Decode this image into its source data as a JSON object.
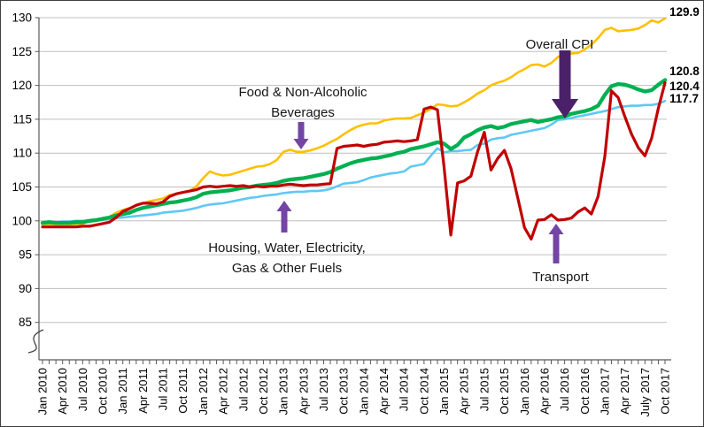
{
  "chart_data": {
    "type": "line",
    "title": "",
    "grid": "horizontal-gray",
    "axis_break": true,
    "ylim_display": [
      85,
      130
    ],
    "y_ticks": [
      85,
      90,
      95,
      100,
      105,
      110,
      115,
      120,
      125,
      130
    ],
    "x_tick_labels": [
      "Jan 2010",
      "Apr 2010",
      "Jul 2010",
      "Oct 2010",
      "Jan 2011",
      "Apr 2011",
      "Jul 2011",
      "Oct 2011",
      "Jan 2012",
      "Apr 2012",
      "Jul 2012",
      "Oct 2012",
      "Jan 2013",
      "Apr 2013",
      "Jul 2013",
      "Oct 2013",
      "Jan 2014",
      "Apr 2014",
      "Jul 2014",
      "Oct 2014",
      "Jan 2015",
      "Apr 2015",
      "Jul 2015",
      "Oct 2015",
      "Jan 2016",
      "Apr 2016",
      "Jul 2016",
      "Oct 2016",
      "Jan 2017",
      "Apr 2017",
      "July 2017",
      "Oct 2017"
    ],
    "months_total": 94,
    "x_range": [
      "Jan 2010",
      "Oct 2017"
    ],
    "series": [
      {
        "id": "food",
        "name": "Food & Non-Alcoholic Beverages",
        "color": "#FFC000",
        "end_label": "129.9",
        "values": [
          99.4,
          99.5,
          99.4,
          99.4,
          99.4,
          99.5,
          99.6,
          99.9,
          100.0,
          100.3,
          100.6,
          101.2,
          101.6,
          101.9,
          102.3,
          102.6,
          102.9,
          103.1,
          103.3,
          103.8,
          104.0,
          104.2,
          104.4,
          105.1,
          106.3,
          107.3,
          106.9,
          106.7,
          106.8,
          107.1,
          107.4,
          107.7,
          108.0,
          108.1,
          108.4,
          109.0,
          110.2,
          110.5,
          110.2,
          110.2,
          110.4,
          110.7,
          111.1,
          111.6,
          112.1,
          112.8,
          113.4,
          113.9,
          114.2,
          114.4,
          114.4,
          114.8,
          115.0,
          115.1,
          115.1,
          115.2,
          115.6,
          116.0,
          116.5,
          117.2,
          117.1,
          116.9,
          117.0,
          117.5,
          118.1,
          118.8,
          119.3,
          120.0,
          120.4,
          120.7,
          121.2,
          121.9,
          122.4,
          123.0,
          123.1,
          122.8,
          123.3,
          124.2,
          124.6,
          124.7,
          124.8,
          125.3,
          126.0,
          127.0,
          128.2,
          128.5,
          128.0,
          128.1,
          128.2,
          128.4,
          128.9,
          129.6,
          129.3,
          129.9
        ]
      },
      {
        "id": "housing",
        "name": "Housing, Water, Electricity, Gas & Other Fuels",
        "color": "#5FC8F4",
        "end_label": "117.7",
        "values": [
          99.7,
          99.8,
          99.8,
          99.9,
          99.9,
          100.0,
          100.0,
          100.1,
          100.1,
          100.2,
          100.3,
          100.4,
          100.5,
          100.6,
          100.7,
          100.8,
          100.9,
          101.0,
          101.2,
          101.3,
          101.4,
          101.5,
          101.7,
          101.9,
          102.2,
          102.4,
          102.5,
          102.6,
          102.8,
          103.0,
          103.2,
          103.4,
          103.5,
          103.7,
          103.8,
          103.9,
          104.1,
          104.2,
          104.3,
          104.3,
          104.4,
          104.4,
          104.5,
          104.7,
          105.1,
          105.5,
          105.6,
          105.7,
          106.0,
          106.4,
          106.6,
          106.8,
          107.0,
          107.1,
          107.3,
          108.0,
          108.2,
          108.4,
          109.6,
          110.7,
          110.1,
          110.3,
          110.3,
          110.4,
          110.5,
          111.2,
          111.4,
          112.0,
          112.2,
          112.3,
          112.7,
          112.9,
          113.1,
          113.3,
          113.5,
          113.7,
          114.2,
          114.9,
          115.0,
          115.2,
          115.4,
          115.6,
          115.8,
          116.0,
          116.2,
          116.5,
          116.8,
          116.9,
          117.0,
          117.0,
          117.1,
          117.1,
          117.3,
          117.7
        ]
      },
      {
        "id": "overall",
        "name": "Overall CPI",
        "color": "#00B050",
        "end_label": "120.8",
        "values": [
          99.7,
          99.8,
          99.7,
          99.7,
          99.7,
          99.8,
          99.8,
          100.0,
          100.1,
          100.3,
          100.5,
          100.8,
          101.0,
          101.2,
          101.6,
          101.9,
          102.1,
          102.3,
          102.5,
          102.7,
          102.8,
          103.0,
          103.2,
          103.5,
          104.0,
          104.2,
          104.3,
          104.4,
          104.5,
          104.7,
          104.9,
          105.0,
          105.2,
          105.3,
          105.4,
          105.6,
          105.9,
          106.1,
          106.2,
          106.3,
          106.5,
          106.7,
          106.9,
          107.2,
          107.7,
          108.1,
          108.5,
          108.8,
          109.0,
          109.2,
          109.3,
          109.5,
          109.7,
          110.0,
          110.2,
          110.6,
          110.8,
          111.0,
          111.3,
          111.6,
          111.4,
          110.6,
          111.2,
          112.3,
          112.8,
          113.4,
          113.8,
          114.0,
          113.7,
          113.9,
          114.3,
          114.5,
          114.7,
          114.9,
          114.6,
          114.8,
          115.0,
          115.3,
          115.4,
          115.8,
          116.0,
          116.2,
          116.5,
          117.0,
          118.6,
          119.9,
          120.2,
          120.1,
          119.8,
          119.4,
          119.1,
          119.3,
          120.1,
          120.8
        ]
      },
      {
        "id": "transport",
        "name": "Transport",
        "color": "#C00000",
        "end_label": "120.4",
        "values": [
          99.1,
          99.1,
          99.1,
          99.1,
          99.1,
          99.1,
          99.2,
          99.2,
          99.4,
          99.6,
          99.8,
          100.5,
          101.4,
          101.8,
          102.3,
          102.6,
          102.6,
          102.5,
          102.8,
          103.6,
          104.0,
          104.2,
          104.4,
          104.6,
          105.0,
          105.1,
          105.0,
          105.1,
          105.2,
          105.1,
          105.2,
          105.0,
          105.1,
          105.0,
          105.1,
          105.1,
          105.3,
          105.4,
          105.3,
          105.2,
          105.3,
          105.3,
          105.4,
          105.5,
          110.7,
          111.0,
          111.1,
          111.2,
          111.0,
          111.2,
          111.3,
          111.6,
          111.7,
          111.8,
          111.7,
          111.8,
          112.0,
          116.5,
          116.8,
          116.4,
          107.9,
          97.9,
          105.6,
          105.9,
          106.6,
          110.2,
          113.1,
          107.5,
          109.2,
          110.4,
          107.7,
          103.4,
          99.0,
          97.3,
          100.1,
          100.2,
          100.9,
          100.1,
          100.2,
          100.4,
          101.3,
          101.9,
          101.0,
          103.6,
          109.5,
          119.2,
          118.2,
          115.4,
          112.8,
          110.8,
          109.6,
          112.2,
          116.6,
          120.4
        ]
      }
    ],
    "annotations": {
      "food": {
        "line1": "Food & Non-Alcoholic",
        "line2": "Beverages",
        "arrow_color": "#7345A5"
      },
      "overall": {
        "line1": "Overall CPI",
        "arrow_color": "#4A2168"
      },
      "housing": {
        "line1": "Housing, Water, Electricity,",
        "line2": "Gas & Other Fuels",
        "arrow_color": "#7345A5"
      },
      "transport": {
        "line1": "Transport",
        "arrow_color": "#7345A5"
      }
    },
    "colors": {
      "gridline": "#BFBFBF",
      "axis": "#595959",
      "tick_text": "#000000",
      "frame_border": "#3f3f3f"
    }
  }
}
